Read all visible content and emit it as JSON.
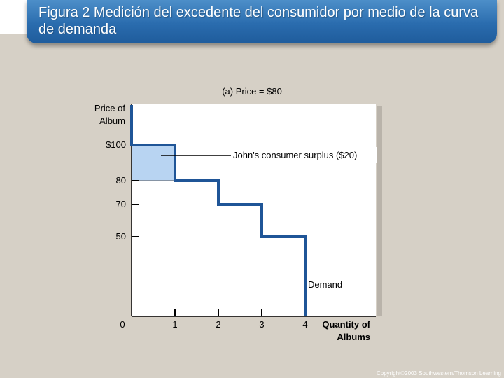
{
  "header": {
    "title": "Figura 2 Medición del excedente del consumidor por medio de la curva de demanda"
  },
  "chart_data": {
    "type": "line",
    "subtitle": "(a) Price = $80",
    "ylabel": "Price of Album",
    "xlabel": "Quantity of Albums",
    "series": [
      {
        "name": "Demand",
        "steps": [
          {
            "q_from": 0,
            "q_to": 1,
            "price": 100
          },
          {
            "q_from": 1,
            "q_to": 2,
            "price": 80
          },
          {
            "q_from": 2,
            "q_to": 3,
            "price": 70
          },
          {
            "q_from": 3,
            "q_to": 4,
            "price": 50
          }
        ]
      }
    ],
    "price_line": 80,
    "x_ticks": [
      {
        "value": 0,
        "label": "0"
      },
      {
        "value": 1,
        "label": "1"
      },
      {
        "value": 2,
        "label": "2"
      },
      {
        "value": 3,
        "label": "3"
      },
      {
        "value": 4,
        "label": "4"
      }
    ],
    "y_ticks": [
      {
        "value": 100,
        "label": "$100"
      },
      {
        "value": 80,
        "label": "80"
      },
      {
        "value": 70,
        "label": "70"
      },
      {
        "value": 50,
        "label": "50"
      }
    ],
    "annotations": {
      "surplus_label": "John's consumer surplus ($20)",
      "demand_label": "Demand"
    },
    "colors": {
      "curve": "#1f5597",
      "surplus": "#b8d4f2",
      "plot_bg": "#ffffff"
    }
  },
  "footer": {
    "copyright": "Copyright©2003 Southwestern/Thomson Learning"
  }
}
